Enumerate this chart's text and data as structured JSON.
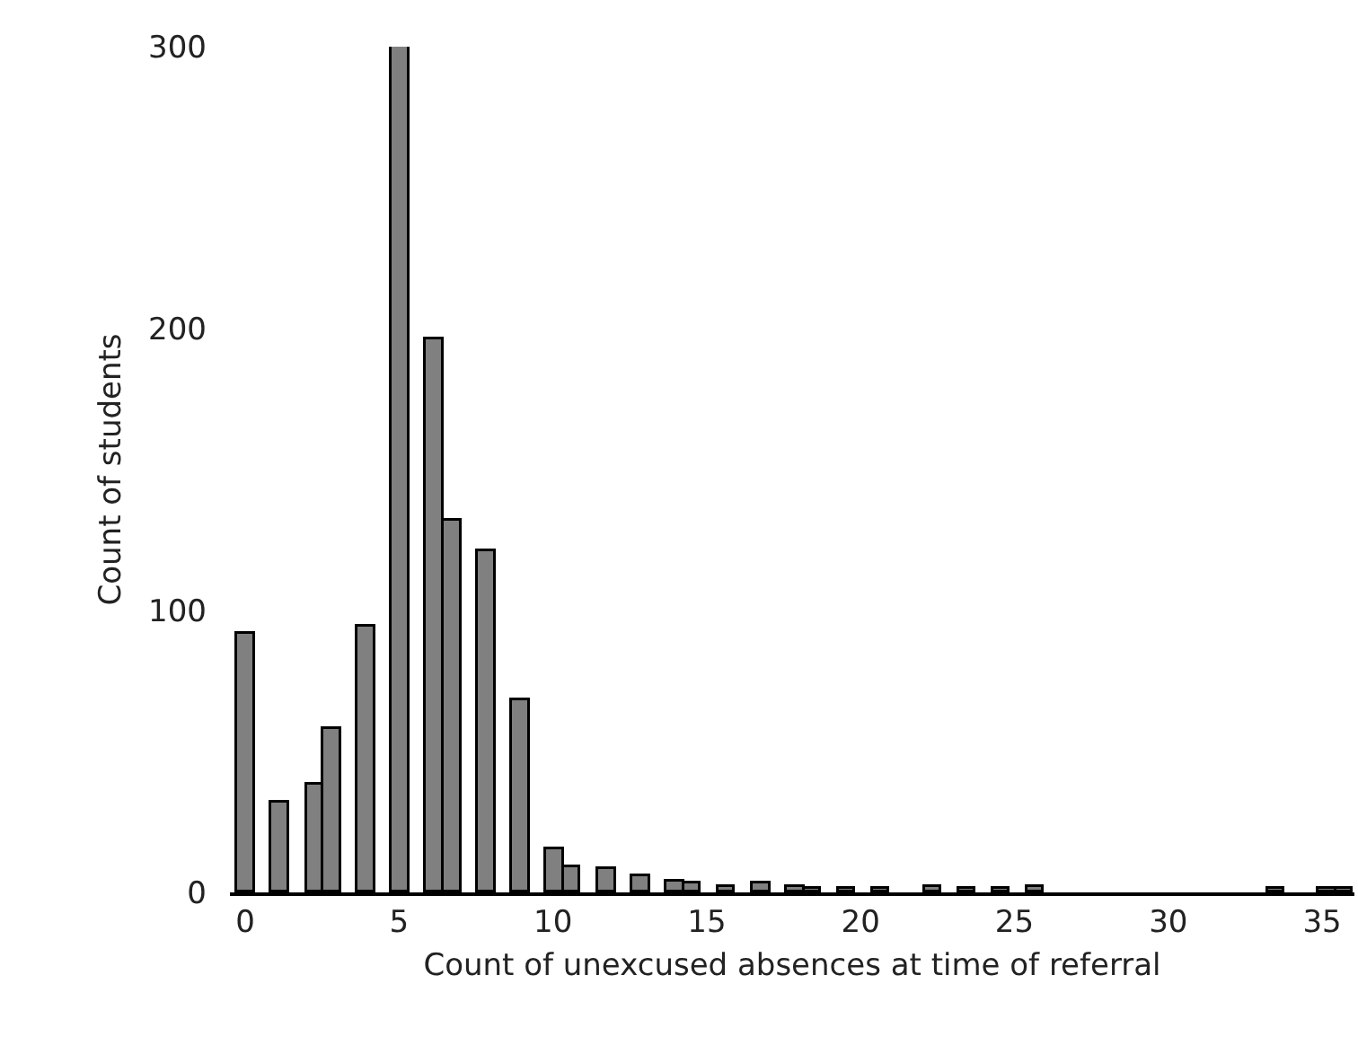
{
  "chart_data": {
    "type": "histogram",
    "xlabel": "Count of unexcused absences at time of referral",
    "ylabel": "Count of students",
    "bins": [
      -0.25,
      0.308,
      0.866,
      1.424,
      1.982,
      2.54,
      3.098,
      3.656,
      4.214,
      4.772,
      5.33,
      5.888,
      6.446,
      7.004,
      7.562,
      8.12,
      8.678,
      9.236,
      9.794,
      10.352,
      10.91,
      11.468,
      12.026,
      12.584,
      13.142,
      13.7,
      14.258,
      14.816,
      15.374,
      15.932,
      16.49,
      17.048,
      17.606,
      18.164,
      18.722,
      19.28,
      19.838,
      20.396,
      20.954,
      21.512,
      22.07,
      22.628,
      23.186,
      23.744,
      24.302,
      24.86,
      25.418,
      25.976,
      26.534,
      27.092,
      27.65,
      28.208,
      28.766,
      29.324,
      29.882,
      30.44,
      30.998,
      31.556,
      32.114,
      32.672,
      33.23,
      33.788,
      34.346,
      34.904,
      35.462,
      36.02
    ],
    "values": [
      92,
      0,
      32,
      0,
      38,
      58,
      0,
      94,
      0,
      300,
      0,
      196,
      132,
      0,
      121,
      0,
      68,
      0,
      15,
      9,
      0,
      8,
      0,
      6,
      0,
      4,
      3,
      0,
      2,
      0,
      3,
      0,
      2,
      1,
      0,
      1,
      0,
      1,
      0,
      0,
      2,
      0,
      1,
      0,
      1,
      0,
      2,
      0,
      0,
      0,
      0,
      0,
      0,
      0,
      0,
      0,
      0,
      0,
      0,
      0,
      1,
      0,
      0,
      1,
      1
    ],
    "color": "#808080",
    "xlim": [
      -0.5,
      36.05
    ],
    "xticks": [
      0,
      5,
      10,
      15,
      20,
      25,
      30,
      35
    ],
    "ylim": [
      0,
      300
    ],
    "yticks": [
      0,
      100,
      200,
      300
    ]
  }
}
